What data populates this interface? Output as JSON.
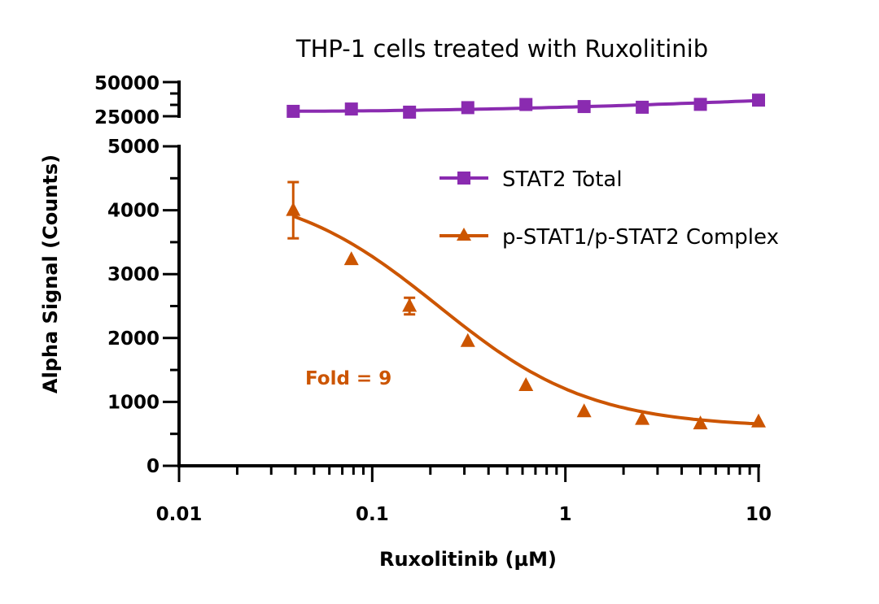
{
  "chart_data": {
    "type": "line",
    "title": "THP-1 cells treated with Ruxolitinib",
    "xlabel": "Ruxolitinib (µM)",
    "ylabel": "Alpha Signal (Counts)",
    "xscale": "log",
    "xlim": [
      0.01,
      10
    ],
    "xticks": [
      "0.01",
      "0.1",
      "1",
      "10"
    ],
    "y_axis_segments": [
      {
        "ylim": [
          0,
          5000
        ],
        "yticks": [
          "0",
          "1000",
          "2000",
          "3000",
          "4000",
          "5000"
        ]
      },
      {
        "ylim": [
          25000,
          50000
        ],
        "yticks": [
          "25000",
          "50000"
        ]
      }
    ],
    "x": [
      0.039,
      0.078,
      0.156,
      0.3125,
      0.625,
      1.25,
      2.5,
      5,
      10
    ],
    "series": [
      {
        "name": "STAT2 Total",
        "color": "#8a2bb0",
        "marker": "square",
        "values": [
          28600,
          30300,
          28000,
          31300,
          33600,
          32100,
          31600,
          33700,
          36800
        ]
      },
      {
        "name": "p-STAT1/p-STAT2 Complex",
        "color": "#cc5500",
        "marker": "triangle",
        "values": [
          4000,
          3230,
          2500,
          1950,
          1260,
          850,
          730,
          660,
          690
        ],
        "error": [
          440,
          0,
          130,
          0,
          0,
          0,
          0,
          0,
          0
        ]
      }
    ],
    "legend": "top-right",
    "grid": false,
    "annotation": {
      "text": "Fold = 9",
      "color": "#cc5500"
    }
  }
}
